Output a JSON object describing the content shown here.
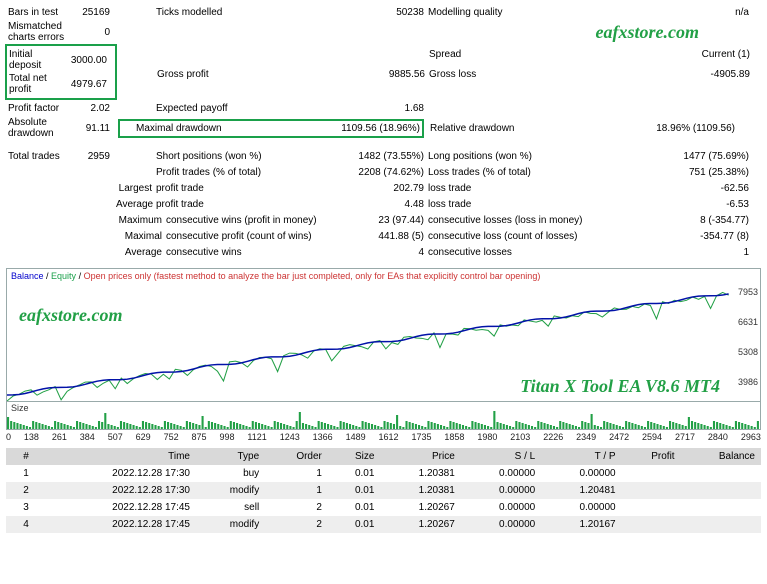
{
  "watermark": "eafxstore.com",
  "chart_title": "Titan X Tool EA V8.6 MT4",
  "stats": {
    "bars_in_test": {
      "label": "Bars in test",
      "value": "25169"
    },
    "ticks_modelled": {
      "label": "Ticks modelled",
      "value": "50238"
    },
    "modelling_quality": {
      "label": "Modelling quality",
      "value": "n/a"
    },
    "mismatched": {
      "label": "Mismatched charts errors",
      "value": "0"
    },
    "initial_deposit": {
      "label": "Initial deposit",
      "value": "3000.00"
    },
    "spread": {
      "label": "Spread",
      "value": "Current (1)"
    },
    "total_net_profit": {
      "label": "Total net profit",
      "value": "4979.67"
    },
    "gross_profit": {
      "label": "Gross profit",
      "value": "9885.56"
    },
    "gross_loss": {
      "label": "Gross loss",
      "value": "-4905.89"
    },
    "profit_factor": {
      "label": "Profit factor",
      "value": "2.02"
    },
    "expected_payoff": {
      "label": "Expected payoff",
      "value": "1.68"
    },
    "absolute_drawdown": {
      "label": "Absolute drawdown",
      "value": "91.11"
    },
    "maximal_drawdown": {
      "label": "Maximal drawdown",
      "value": "1109.56 (18.96%)"
    },
    "relative_drawdown": {
      "label": "Relative drawdown",
      "value": "18.96% (1109.56)"
    },
    "total_trades": {
      "label": "Total trades",
      "value": "2959"
    },
    "short_positions": {
      "label": "Short positions (won %)",
      "value": "1482 (73.55%)"
    },
    "long_positions": {
      "label": "Long positions (won %)",
      "value": "1477 (75.69%)"
    },
    "profit_trades": {
      "label": "Profit trades (% of total)",
      "value": "2208 (74.62%)"
    },
    "loss_trades": {
      "label": "Loss trades (% of total)",
      "value": "751 (25.38%)"
    },
    "largest_profit": {
      "label": "Largest",
      "text": "profit trade",
      "value": "202.79"
    },
    "largest_loss": {
      "text": "loss trade",
      "value": "-62.56"
    },
    "average_profit": {
      "label": "Average",
      "text": "profit trade",
      "value": "4.48"
    },
    "average_loss": {
      "text": "loss trade",
      "value": "-6.53"
    },
    "max_cons_wins": {
      "label": "Maximum",
      "text": "consecutive wins (profit in money)",
      "value": "23 (97.44)"
    },
    "max_cons_losses": {
      "text": "consecutive losses (loss in money)",
      "value": "8 (-354.77)"
    },
    "maximal_cons_profit": {
      "label": "Maximal",
      "text": "consecutive profit (count of wins)",
      "value": "441.88 (5)"
    },
    "maximal_cons_loss": {
      "text": "consecutive loss (count of losses)",
      "value": "-354.77 (8)"
    },
    "avg_cons_wins": {
      "label": "Average",
      "text": "consecutive wins",
      "value": "4"
    },
    "avg_cons_losses": {
      "text": "consecutive losses",
      "value": "1"
    }
  },
  "chart": {
    "legend_balance": "Balance",
    "legend_equity": "Equity",
    "legend_open": "Open prices only (fastest method to analyze the bar just completed, only for EAs that explicitly control bar opening)",
    "ylabels": [
      "7953",
      "6631",
      "5308",
      "3986"
    ],
    "size_label": "Size",
    "xticks": [
      "0",
      "138",
      "261",
      "384",
      "507",
      "629",
      "752",
      "875",
      "998",
      "1121",
      "1243",
      "1366",
      "1489",
      "1612",
      "1735",
      "1858",
      "1980",
      "2103",
      "2226",
      "2349",
      "2472",
      "2594",
      "2717",
      "2840",
      "2963"
    ],
    "balance_color": "#0212a8",
    "equity_color": "#22a046",
    "bg": "#ffffff"
  },
  "trades": {
    "headers": [
      "#",
      "Time",
      "Type",
      "Order",
      "Size",
      "Price",
      "S / L",
      "T / P",
      "Profit",
      "Balance"
    ],
    "rows": [
      [
        "1",
        "2022.12.28 17:30",
        "buy",
        "1",
        "0.01",
        "1.20381",
        "0.00000",
        "0.00000",
        "",
        ""
      ],
      [
        "2",
        "2022.12.28 17:30",
        "modify",
        "1",
        "0.01",
        "1.20381",
        "0.00000",
        "1.20481",
        "",
        ""
      ],
      [
        "3",
        "2022.12.28 17:45",
        "sell",
        "2",
        "0.01",
        "1.20267",
        "0.00000",
        "0.00000",
        "",
        ""
      ],
      [
        "4",
        "2022.12.28 17:45",
        "modify",
        "2",
        "0.01",
        "1.20267",
        "0.00000",
        "1.20167",
        "",
        ""
      ]
    ]
  }
}
